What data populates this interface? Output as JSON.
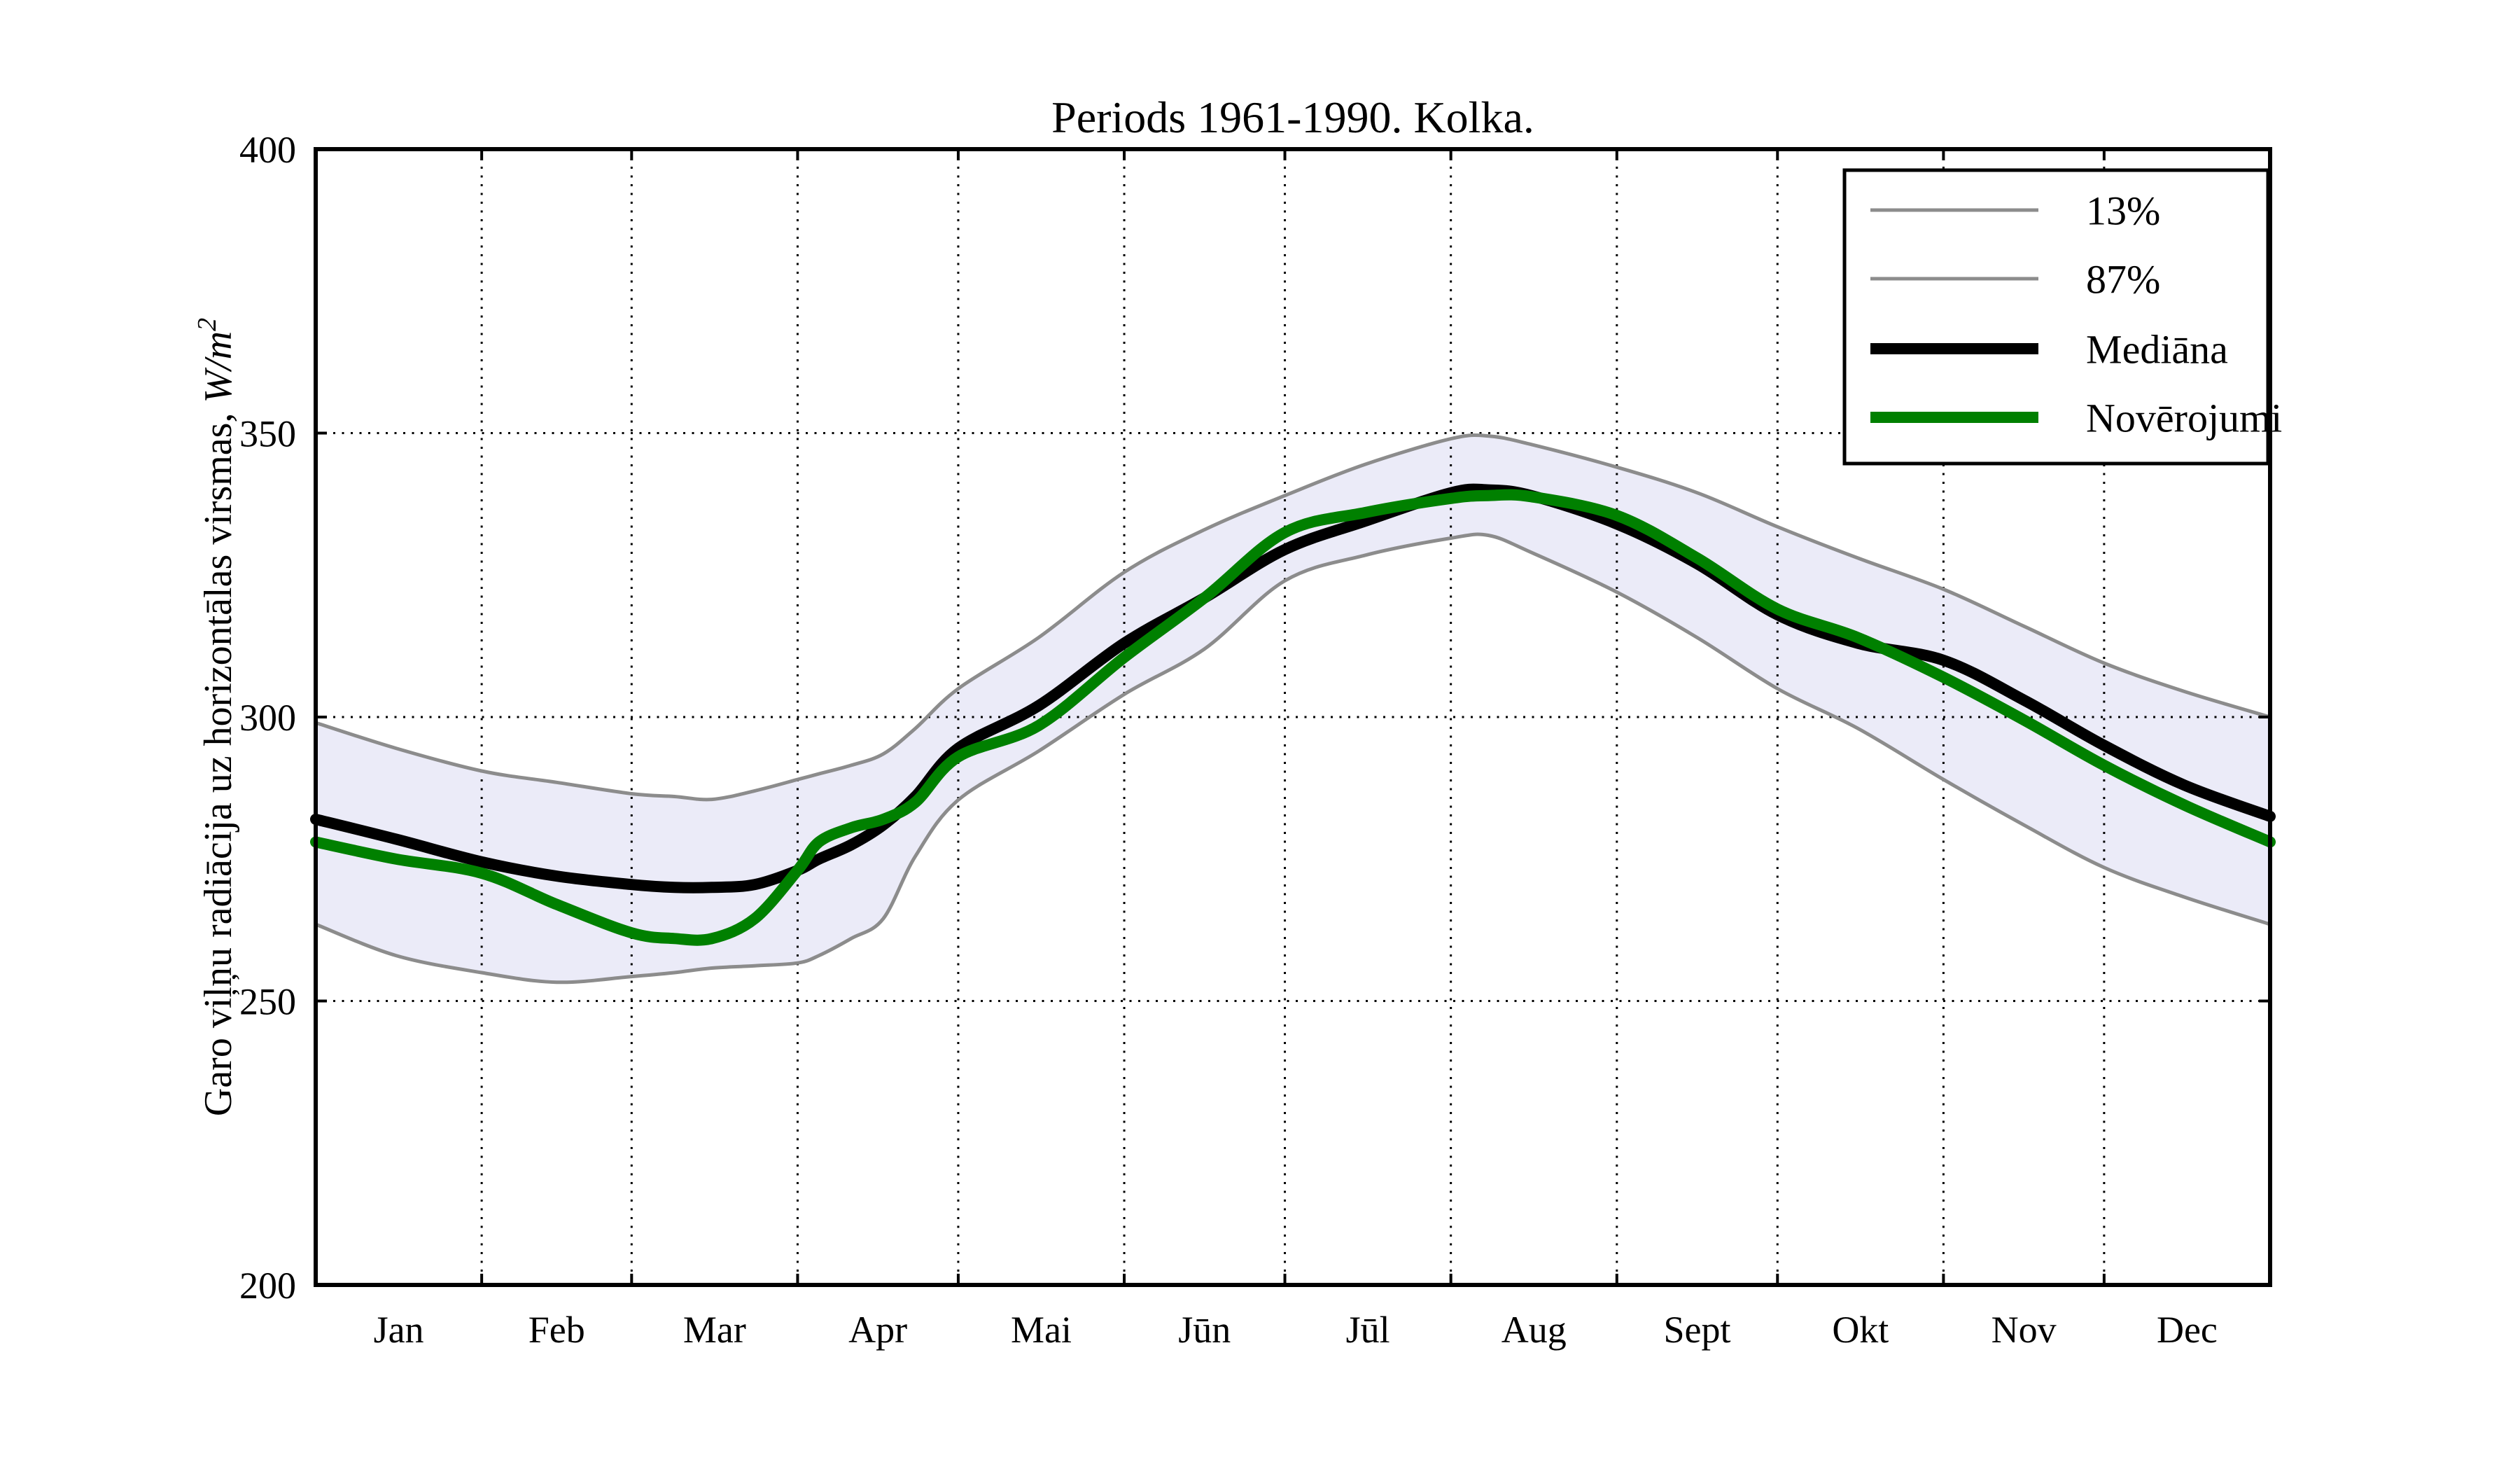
{
  "chart_data": {
    "type": "line",
    "title": "Periods 1961-1990. Kolka.",
    "ylabel_text": "Garo viļņu radiācija uz horizontālas virsmas, ",
    "ylabel_math": "W/m",
    "ylabel_sup": "2",
    "ylim": [
      200,
      400
    ],
    "yticks": [
      200,
      250,
      300,
      350,
      400
    ],
    "x_unit": "day_of_year",
    "xlim_days": [
      0,
      365
    ],
    "month_boundaries_days": [
      0,
      31,
      59,
      90,
      120,
      151,
      181,
      212,
      243,
      273,
      304,
      334,
      365
    ],
    "month_labels": [
      "Jan",
      "Feb",
      "Mar",
      "Apr",
      "Mai",
      "Jūn",
      "Jūl",
      "Aug",
      "Sept",
      "Okt",
      "Nov",
      "Dec"
    ],
    "grid": "dotted",
    "legend_position": "upper right",
    "x_days": [
      0,
      15,
      31,
      45,
      59,
      67,
      74,
      82,
      90,
      94,
      100,
      106,
      112,
      120,
      135,
      151,
      166,
      181,
      196,
      212,
      219,
      227,
      243,
      258,
      273,
      288,
      304,
      319,
      334,
      349,
      365
    ],
    "series": [
      {
        "name": "13%",
        "role": "percentile_lower",
        "style": "thin-gray",
        "values": [
          263.5,
          258,
          255,
          253.3,
          254.3,
          255,
          255.8,
          256.2,
          256.7,
          258,
          261,
          264.5,
          275.5,
          285.4,
          294,
          304,
          312,
          324,
          328.5,
          331.5,
          332,
          329,
          322,
          314,
          305,
          298,
          289,
          281,
          273.5,
          268.3,
          263.5
        ]
      },
      {
        "name": "87%",
        "role": "percentile_upper",
        "style": "thin-gray",
        "values": [
          299,
          294.5,
          290.5,
          288.5,
          286.5,
          286,
          285.5,
          287,
          289,
          290,
          291.5,
          293.5,
          298,
          305,
          314,
          325.5,
          333,
          339,
          344.5,
          349,
          349.5,
          348,
          344,
          339.5,
          333.5,
          328,
          322.5,
          316,
          309.5,
          304.5,
          300
        ]
      },
      {
        "name": "Mediāna",
        "role": "median",
        "style": "thick-black",
        "values": [
          282,
          278.5,
          274.5,
          272,
          270.5,
          270,
          270,
          270.5,
          273,
          275,
          277.5,
          281,
          286,
          294.5,
          302,
          313,
          321,
          329.5,
          334.5,
          339.5,
          340,
          339,
          334,
          327,
          318,
          313,
          310,
          303,
          295,
          288,
          282.5
        ]
      },
      {
        "name": "Novērojumi",
        "role": "observations",
        "style": "thick-green",
        "values": [
          278,
          275,
          272.5,
          267,
          262,
          261,
          261,
          264.5,
          273,
          278,
          280.5,
          282,
          285,
          293,
          298.5,
          310.5,
          321,
          332.5,
          336,
          338.5,
          339,
          338.8,
          335.5,
          328,
          319,
          314,
          307,
          299.5,
          291.5,
          284.5,
          278
        ]
      }
    ],
    "band_between": [
      "13%",
      "87%"
    ]
  },
  "colors": {
    "median": "#000000",
    "observations": "#008000",
    "percentile": "#8c8c8c",
    "band_fill": "#ebebf8",
    "grid": "#000000",
    "spine": "#000000",
    "legend_bg": "#ffffff"
  }
}
